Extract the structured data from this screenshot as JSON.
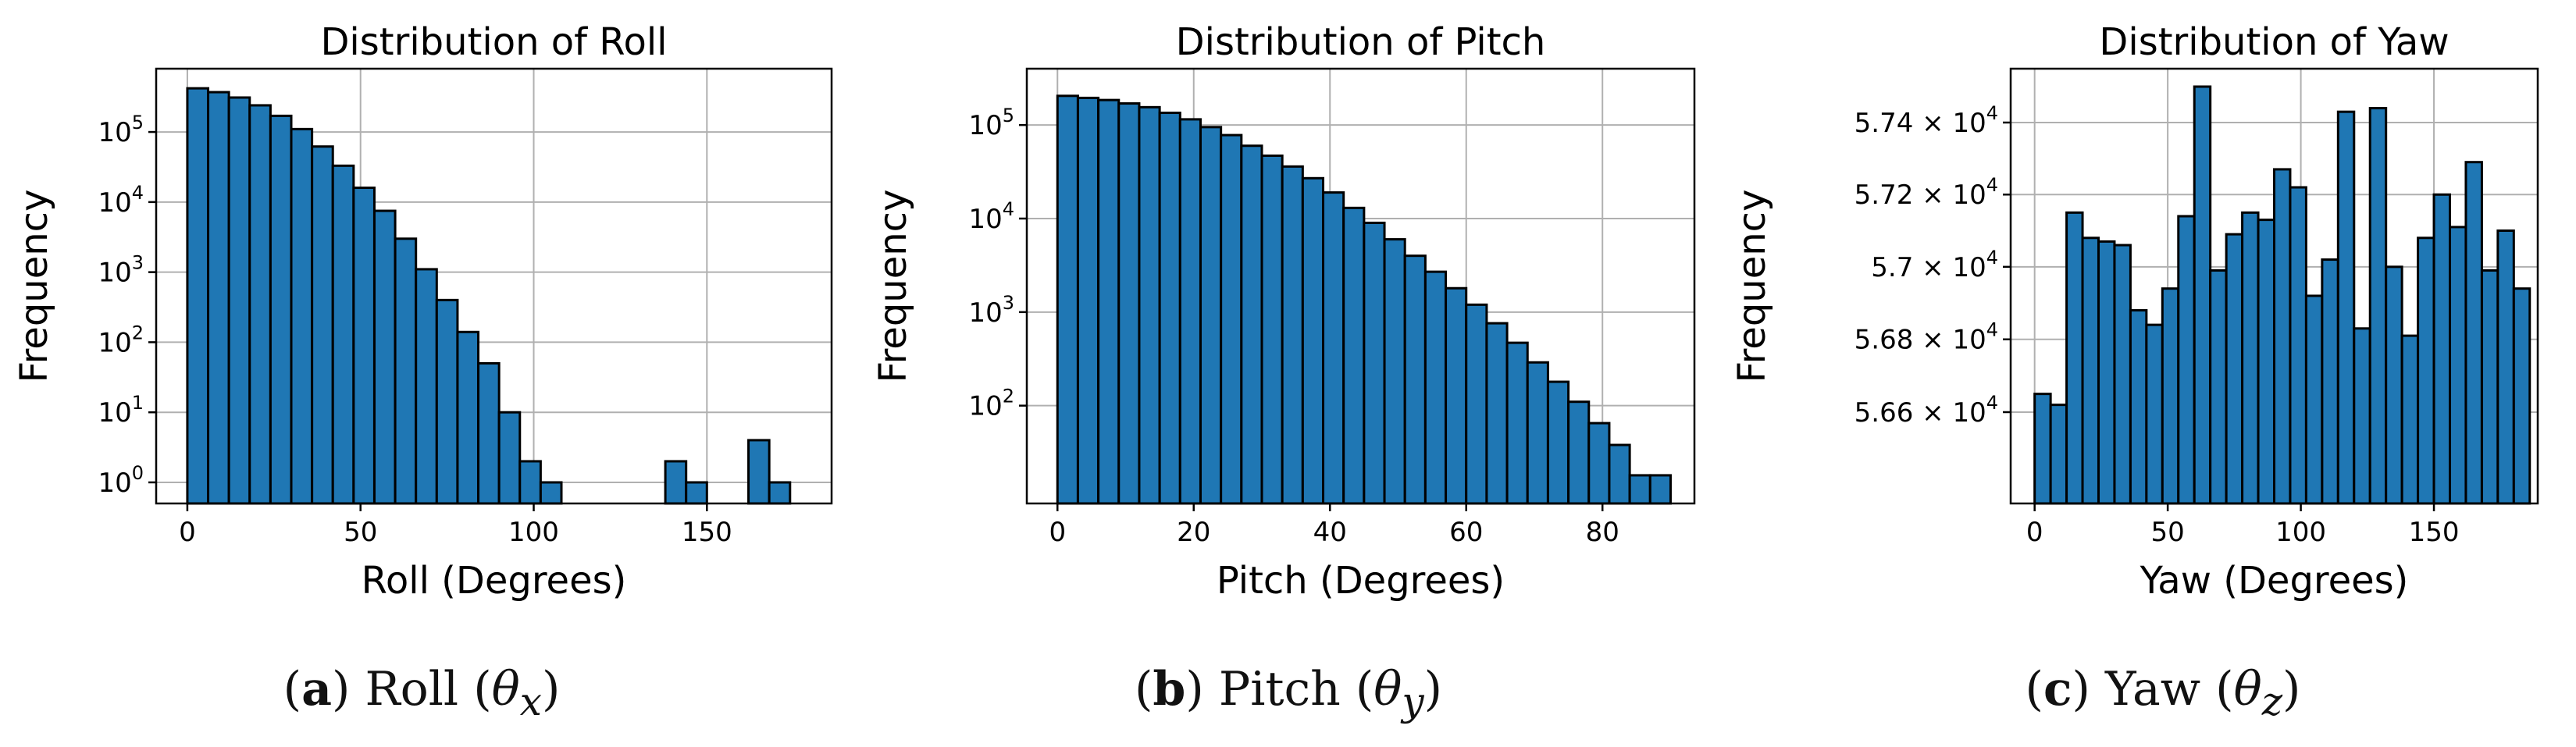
{
  "captions": [
    {
      "letter": "a",
      "name": "Roll",
      "symbol": "θ",
      "sub": "x"
    },
    {
      "letter": "b",
      "name": "Pitch",
      "symbol": "θ",
      "sub": "y"
    },
    {
      "letter": "c",
      "name": "Yaw",
      "symbol": "θ",
      "sub": "z"
    }
  ],
  "chart_data": [
    {
      "type": "bar",
      "title": "Distribution of Roll",
      "xlabel": "Roll (Degrees)",
      "ylabel": "Frequency",
      "yscale": "log",
      "ylim": [
        0.5,
        800000
      ],
      "xlim": [
        -9,
        186
      ],
      "xticks": [
        0,
        50,
        100,
        150
      ],
      "yticks": [
        {
          "value": 1,
          "base": "10",
          "exp": "0"
        },
        {
          "value": 10,
          "base": "10",
          "exp": "1"
        },
        {
          "value": 100,
          "base": "10",
          "exp": "2"
        },
        {
          "value": 1000,
          "base": "10",
          "exp": "3"
        },
        {
          "value": 10000,
          "base": "10",
          "exp": "4"
        },
        {
          "value": 100000,
          "base": "10",
          "exp": "5"
        }
      ],
      "bin_start": 0,
      "bin_width": 6,
      "values": [
        420000,
        370000,
        310000,
        240000,
        170000,
        110000,
        62000,
        33000,
        16000,
        7500,
        3000,
        1100,
        400,
        140,
        50,
        10,
        2,
        1,
        0,
        0,
        0,
        0,
        0,
        2,
        1,
        0,
        0,
        4,
        1,
        0
      ],
      "bar_color": "#1f77b4",
      "grid": true
    },
    {
      "type": "bar",
      "title": "Distribution of Pitch",
      "xlabel": "Pitch (Degrees)",
      "ylabel": "Frequency",
      "yscale": "log",
      "ylim": [
        9,
        400000
      ],
      "xlim": [
        -4.5,
        93.5
      ],
      "xticks": [
        0,
        20,
        40,
        60,
        80
      ],
      "yticks": [
        {
          "value": 100,
          "base": "10",
          "exp": "2"
        },
        {
          "value": 1000,
          "base": "10",
          "exp": "3"
        },
        {
          "value": 10000,
          "base": "10",
          "exp": "4"
        },
        {
          "value": 100000,
          "base": "10",
          "exp": "5"
        }
      ],
      "bin_start": 0,
      "bin_width": 3,
      "values": [
        205000,
        195000,
        185000,
        170000,
        155000,
        135000,
        115000,
        95000,
        78000,
        60000,
        47000,
        36000,
        27000,
        19000,
        13000,
        9000,
        6000,
        4000,
        2700,
        1800,
        1200,
        760,
        470,
        290,
        180,
        110,
        65,
        38,
        18,
        18
      ],
      "bar_color": "#1f77b4",
      "grid": true
    },
    {
      "type": "bar",
      "title": "Distribution of Yaw",
      "xlabel": "Yaw (Degrees)",
      "ylabel": "Frequency",
      "yscale": "log",
      "ylim": [
        56350,
        57550
      ],
      "xlim": [
        -9,
        189
      ],
      "xticks": [
        0,
        50,
        100,
        150
      ],
      "yticks": [
        {
          "value": 56600,
          "base": "5.66 × 10",
          "exp": "4"
        },
        {
          "value": 56800,
          "base": "5.68 × 10",
          "exp": "4"
        },
        {
          "value": 57000,
          "base": "5.7 × 10",
          "exp": "4"
        },
        {
          "value": 57200,
          "base": "5.72 × 10",
          "exp": "4"
        },
        {
          "value": 57400,
          "base": "5.74 × 10",
          "exp": "4"
        }
      ],
      "bin_start": 0,
      "bin_width": 6,
      "values": [
        56650,
        56620,
        57150,
        57080,
        57070,
        57060,
        56880,
        56840,
        56940,
        57140,
        57500,
        56990,
        57090,
        57150,
        57130,
        57270,
        57220,
        56920,
        57020,
        57430,
        56830,
        57440,
        57000,
        56810,
        57080,
        57200,
        57110,
        57290,
        56990,
        57100,
        56940
      ],
      "bar_color": "#1f77b4",
      "grid": true
    }
  ]
}
